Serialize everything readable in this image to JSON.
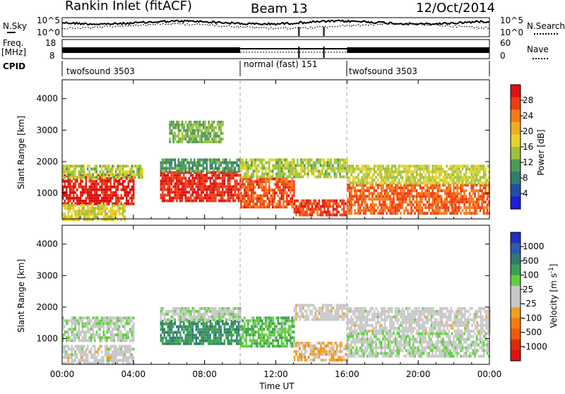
{
  "header": {
    "station": "Rankin Inlet (fitACF)",
    "beam": "Beam 13",
    "date": "12/Oct/2014"
  },
  "strips": {
    "nsky_label": "N.Sky",
    "nsky_ticks": [
      "10^5",
      "10^0"
    ],
    "nsearch_label": "N.Search",
    "nsearch_ticks": [
      "10^5",
      "10^0"
    ],
    "freq_label_1": "Freq.",
    "freq_label_2": "[MHz]",
    "freq_ticks": [
      "18",
      "8"
    ],
    "nave_label": "Nave",
    "nave_ticks": [
      "60",
      "0"
    ],
    "cpid_label": "CPID",
    "cpid_segments": [
      {
        "label": "twofsound 3503",
        "start_hour": 0,
        "end_hour": 10
      },
      {
        "label": "normal (fast) 151",
        "start_hour": 10,
        "end_hour": 16
      },
      {
        "label": "twofsound 3503",
        "start_hour": 16,
        "end_hour": 24
      }
    ]
  },
  "axes": {
    "ylabel": "Slant Range [km]",
    "xlabel": "Time UT",
    "x_ticks": [
      "00:00",
      "04:00",
      "08:00",
      "12:00",
      "16:00",
      "20:00",
      "00:00"
    ],
    "y_ticks": [
      "1000",
      "2000",
      "3000",
      "4000"
    ]
  },
  "colorbars": {
    "power": {
      "label": "Power [dB]",
      "ticks": [
        "28",
        "24",
        "20",
        "16",
        "12",
        "8",
        "4"
      ],
      "colors": [
        "#e01010",
        "#f23a10",
        "#f77a15",
        "#f2aa22",
        "#e6d22c",
        "#9cc23c",
        "#4e9a58",
        "#2f7f6a",
        "#1f4fa8",
        "#1d1ddd"
      ]
    },
    "velocity": {
      "label": "Velocity [m s",
      "label_sup": "-1",
      "label_end": "]",
      "ticks": [
        "1000",
        "500",
        "100",
        "25",
        "-25",
        "-100",
        "-500",
        "-1000"
      ],
      "colors": [
        "#1f2fbf",
        "#2c5ab0",
        "#2f7a70",
        "#3aa050",
        "#5ed13a",
        "#c8c8c8",
        "#c8c8c8",
        "#f0a020",
        "#f57a10",
        "#f05a0a",
        "#e02a0a",
        "#e01010"
      ]
    }
  },
  "chart_data": [
    {
      "type": "heatmap",
      "panel": "power",
      "title": "",
      "xlabel": "",
      "ylabel": "Slant Range [km]",
      "x_unit": "hour UT",
      "xlim": [
        0,
        24
      ],
      "ylim": [
        180,
        4600
      ],
      "colorbar_label": "Power [dB]",
      "zlim": [
        0,
        30
      ],
      "regions": [
        {
          "t0": 0.0,
          "t1": 4.0,
          "r0": 700,
          "r1": 1600,
          "value": 28
        },
        {
          "t0": 0.0,
          "t1": 4.5,
          "r0": 1500,
          "r1": 1900,
          "value": 14
        },
        {
          "t0": 0.0,
          "t1": 3.5,
          "r0": 200,
          "r1": 650,
          "value": 16
        },
        {
          "t0": 5.5,
          "t1": 10.0,
          "r0": 750,
          "r1": 1700,
          "value": 27
        },
        {
          "t0": 5.5,
          "t1": 10.0,
          "r0": 1700,
          "r1": 2100,
          "value": 10
        },
        {
          "t0": 10.0,
          "t1": 13.0,
          "r0": 600,
          "r1": 1500,
          "value": 25
        },
        {
          "t0": 10.0,
          "t1": 16.0,
          "r0": 1500,
          "r1": 2100,
          "value": 14
        },
        {
          "t0": 13.0,
          "t1": 16.0,
          "r0": 300,
          "r1": 800,
          "value": 26
        },
        {
          "t0": 16.0,
          "t1": 24.0,
          "r0": 400,
          "r1": 1300,
          "value": 24
        },
        {
          "t0": 16.0,
          "t1": 24.0,
          "r0": 1300,
          "r1": 1900,
          "value": 15
        },
        {
          "t0": 6.0,
          "t1": 9.0,
          "r0": 2600,
          "r1": 3300,
          "value": 12
        }
      ]
    },
    {
      "type": "heatmap",
      "panel": "velocity",
      "title": "",
      "xlabel": "Time UT",
      "ylabel": "Slant Range [km]",
      "x_unit": "hour UT",
      "xlim": [
        0,
        24
      ],
      "ylim": [
        180,
        4600
      ],
      "colorbar_label": "Velocity [m s-1]",
      "zlim": [
        -1000,
        1000
      ],
      "regions": [
        {
          "t0": 0.0,
          "t1": 4.0,
          "r0": 900,
          "r1": 1700,
          "value": 100
        },
        {
          "t0": 0.0,
          "t1": 4.0,
          "r0": 200,
          "r1": 800,
          "value": 0
        },
        {
          "t0": 5.5,
          "t1": 10.0,
          "r0": 800,
          "r1": 1600,
          "value": 500
        },
        {
          "t0": 5.5,
          "t1": 10.0,
          "r0": 1600,
          "r1": 2000,
          "value": 100
        },
        {
          "t0": 10.0,
          "t1": 13.0,
          "r0": 800,
          "r1": 1700,
          "value": 300
        },
        {
          "t0": 13.0,
          "t1": 16.0,
          "r0": 300,
          "r1": 900,
          "value": -200
        },
        {
          "t0": 13.0,
          "t1": 16.0,
          "r0": 1600,
          "r1": 2100,
          "value": -20
        },
        {
          "t0": 16.0,
          "t1": 20.0,
          "r0": 1200,
          "r1": 2000,
          "value": 0
        },
        {
          "t0": 16.0,
          "t1": 24.0,
          "r0": 400,
          "r1": 1200,
          "value": 100
        },
        {
          "t0": 20.0,
          "t1": 24.0,
          "r0": 1200,
          "r1": 2000,
          "value": 0
        }
      ]
    }
  ]
}
